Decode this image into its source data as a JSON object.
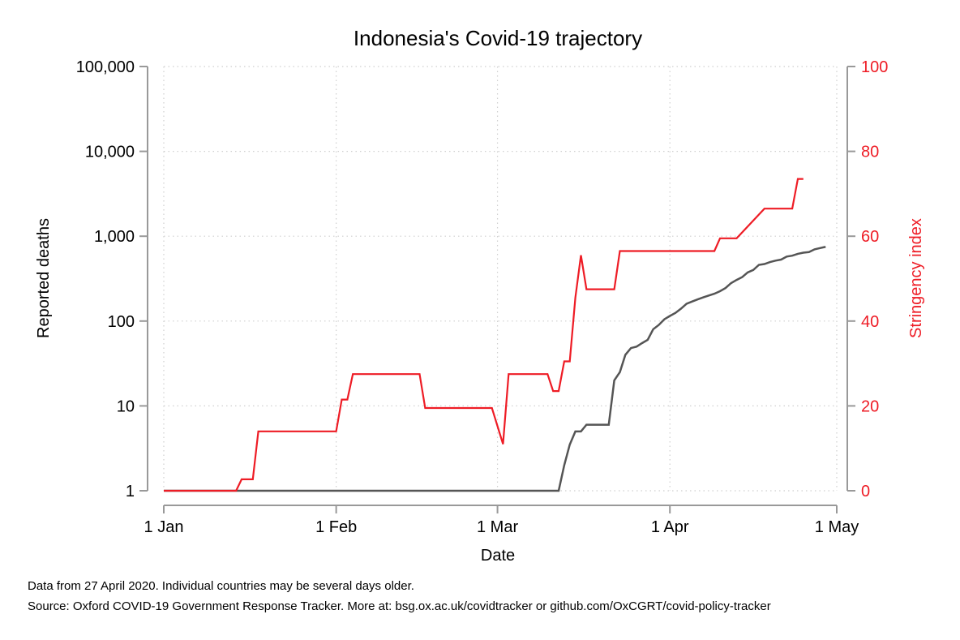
{
  "chart_data": {
    "type": "line",
    "title": "Indonesia's Covid-19 trajectory",
    "xlabel": "Date",
    "ylabel_left": "Reported deaths",
    "ylabel_right": "Stringency index",
    "x_ticks": [
      "1 Jan",
      "1 Feb",
      "1 Mar",
      "1 Apr",
      "1 May"
    ],
    "y_left_scale": "log",
    "y_left_ticks": [
      "1",
      "10",
      "100",
      "1,000",
      "10,000",
      "100,000"
    ],
    "y_left_range": [
      1,
      100000
    ],
    "y_right_ticks": [
      "0",
      "20",
      "40",
      "60",
      "80",
      "100"
    ],
    "y_right_range": [
      0,
      100
    ],
    "x_range": [
      "2020-01-01",
      "2020-05-01"
    ],
    "grid": true,
    "series": [
      {
        "name": "Reported deaths",
        "axis": "left",
        "color": "#555555",
        "points": [
          [
            "2020-01-01",
            1
          ],
          [
            "2020-03-12",
            1
          ],
          [
            "2020-03-13",
            2
          ],
          [
            "2020-03-14",
            3.5
          ],
          [
            "2020-03-15",
            5
          ],
          [
            "2020-03-16",
            5
          ],
          [
            "2020-03-17",
            6
          ],
          [
            "2020-03-21",
            6
          ],
          [
            "2020-03-22",
            20
          ],
          [
            "2020-03-23",
            25
          ],
          [
            "2020-03-24",
            40
          ],
          [
            "2020-03-25",
            48
          ],
          [
            "2020-03-26",
            50
          ],
          [
            "2020-03-27",
            55
          ],
          [
            "2020-03-28",
            60
          ],
          [
            "2020-03-29",
            80
          ],
          [
            "2020-03-30",
            90
          ],
          [
            "2020-03-31",
            105
          ],
          [
            "2020-04-01",
            115
          ],
          [
            "2020-04-02",
            125
          ],
          [
            "2020-04-03",
            140
          ],
          [
            "2020-04-04",
            160
          ],
          [
            "2020-04-05",
            170
          ],
          [
            "2020-04-06",
            180
          ],
          [
            "2020-04-07",
            190
          ],
          [
            "2020-04-08",
            200
          ],
          [
            "2020-04-09",
            210
          ],
          [
            "2020-04-10",
            225
          ],
          [
            "2020-04-11",
            245
          ],
          [
            "2020-04-12",
            280
          ],
          [
            "2020-04-13",
            305
          ],
          [
            "2020-04-14",
            330
          ],
          [
            "2020-04-15",
            375
          ],
          [
            "2020-04-16",
            400
          ],
          [
            "2020-04-17",
            460
          ],
          [
            "2020-04-18",
            470
          ],
          [
            "2020-04-19",
            495
          ],
          [
            "2020-04-20",
            515
          ],
          [
            "2020-04-21",
            530
          ],
          [
            "2020-04-22",
            575
          ],
          [
            "2020-04-23",
            590
          ],
          [
            "2020-04-24",
            620
          ],
          [
            "2020-04-25",
            640
          ],
          [
            "2020-04-26",
            650
          ],
          [
            "2020-04-27",
            700
          ],
          [
            "2020-04-28",
            725
          ],
          [
            "2020-04-29",
            750
          ]
        ]
      },
      {
        "name": "Stringency index",
        "axis": "right",
        "color": "#ee1c25",
        "points": [
          [
            "2020-01-01",
            0
          ],
          [
            "2020-01-14",
            0
          ],
          [
            "2020-01-15",
            2.7
          ],
          [
            "2020-01-17",
            2.7
          ],
          [
            "2020-01-18",
            14
          ],
          [
            "2020-01-31",
            14
          ],
          [
            "2020-02-01",
            14
          ],
          [
            "2020-02-02",
            21.5
          ],
          [
            "2020-02-03",
            21.5
          ],
          [
            "2020-02-04",
            27.5
          ],
          [
            "2020-02-16",
            27.5
          ],
          [
            "2020-02-17",
            19.5
          ],
          [
            "2020-02-29",
            19.5
          ],
          [
            "2020-03-02",
            11
          ],
          [
            "2020-03-03",
            27.5
          ],
          [
            "2020-03-10",
            27.5
          ],
          [
            "2020-03-11",
            23.5
          ],
          [
            "2020-03-12",
            23.5
          ],
          [
            "2020-03-13",
            30.5
          ],
          [
            "2020-03-14",
            30.5
          ],
          [
            "2020-03-15",
            45.5
          ],
          [
            "2020-03-16",
            55.5
          ],
          [
            "2020-03-17",
            47.5
          ],
          [
            "2020-03-22",
            47.5
          ],
          [
            "2020-03-23",
            56.5
          ],
          [
            "2020-04-09",
            56.5
          ],
          [
            "2020-04-10",
            59.5
          ],
          [
            "2020-04-13",
            59.5
          ],
          [
            "2020-04-18",
            66.5
          ],
          [
            "2020-04-23",
            66.5
          ],
          [
            "2020-04-24",
            73.5
          ],
          [
            "2020-04-25",
            73.5
          ]
        ]
      }
    ]
  },
  "footnotes": {
    "line1": "Data from 27 April 2020. Individual countries may be several days older.",
    "line2": "Source: Oxford COVID-19 Government Response Tracker. More at: bsg.ox.ac.uk/covidtracker or github.com/OxCGRT/covid-policy-tracker"
  }
}
